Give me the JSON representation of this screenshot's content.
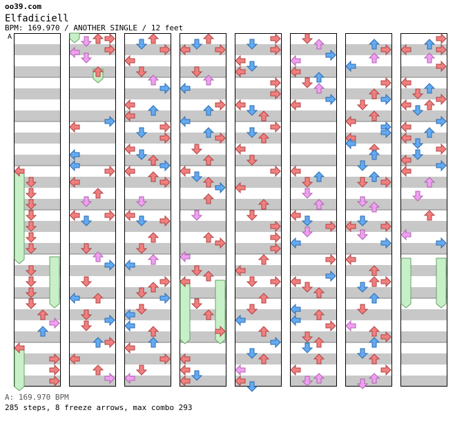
{
  "header": {
    "site": "oo39.com",
    "song_title": "Elfadiciell",
    "info_line": "BPM: 169.970 / ANOTHER SINGLE / 12 feet",
    "bpm_marker": "A"
  },
  "footer": {
    "bpm_line": "A: 169.970 BPM",
    "stats_line": "285 steps, 8 freeze arrows, max combo 293"
  },
  "colors": {
    "red_arrow": "#f08080",
    "blue_arrow": "#64aaf0",
    "pink_arrow": "#f0a0f0",
    "freeze_fill": "#c8f0c8",
    "freeze_border": "#64a064",
    "stripe": "#c8c8c8"
  },
  "chart": {
    "columns": 8,
    "measures_per_column": 8,
    "icons": [
      "left-arrow-icon",
      "down-arrow-icon",
      "up-arrow-icon",
      "right-arrow-icon"
    ]
  }
}
